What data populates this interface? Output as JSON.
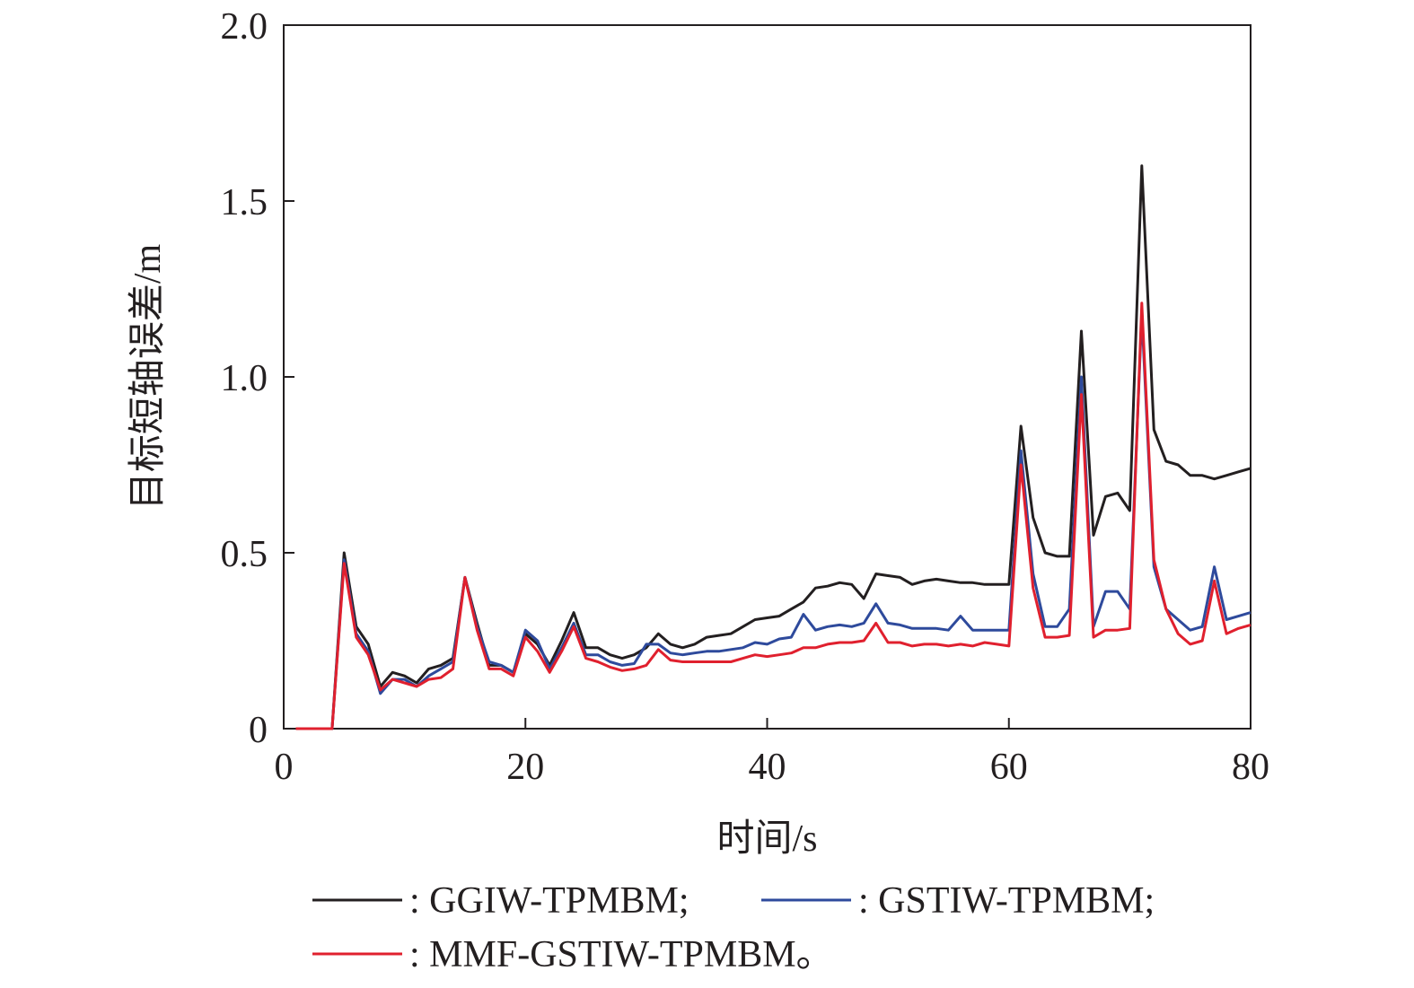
{
  "chart_data": {
    "type": "line",
    "title": "",
    "xlabel": "时间/s",
    "ylabel": "目标短轴误差/m",
    "xlim": [
      0,
      80
    ],
    "ylim": [
      0,
      2.0
    ],
    "x_ticks": [
      0,
      20,
      40,
      60,
      80
    ],
    "x_tick_labels": [
      "0",
      "20",
      "40",
      "60",
      "80"
    ],
    "y_ticks": [
      0,
      0.5,
      1.0,
      1.5,
      2.0
    ],
    "y_tick_labels": [
      "0",
      "0.5",
      "1.0",
      "1.5",
      "2.0"
    ],
    "grid": false,
    "legend_position": "bottom",
    "x": [
      1,
      2,
      3,
      4,
      5,
      6,
      7,
      8,
      9,
      10,
      11,
      12,
      13,
      14,
      15,
      16,
      17,
      18,
      19,
      20,
      21,
      22,
      23,
      24,
      25,
      26,
      27,
      28,
      29,
      30,
      31,
      32,
      33,
      34,
      35,
      36,
      37,
      38,
      39,
      40,
      41,
      42,
      43,
      44,
      45,
      46,
      47,
      48,
      49,
      50,
      51,
      52,
      53,
      54,
      55,
      56,
      57,
      58,
      59,
      60,
      61,
      62,
      63,
      64,
      65,
      66,
      67,
      68,
      69,
      70,
      71,
      72,
      73,
      74,
      75,
      76,
      77,
      78,
      79,
      80
    ],
    "series": [
      {
        "name": ": GGIW-TPMBM;",
        "color": "#231f20",
        "values": [
          0,
          0,
          0,
          0,
          0.5,
          0.29,
          0.24,
          0.12,
          0.16,
          0.15,
          0.13,
          0.17,
          0.18,
          0.2,
          0.43,
          0.3,
          0.18,
          0.18,
          0.16,
          0.27,
          0.24,
          0.18,
          0.25,
          0.33,
          0.23,
          0.23,
          0.21,
          0.2,
          0.21,
          0.23,
          0.27,
          0.24,
          0.23,
          0.24,
          0.26,
          0.265,
          0.27,
          0.29,
          0.31,
          0.315,
          0.32,
          0.34,
          0.36,
          0.4,
          0.405,
          0.415,
          0.41,
          0.37,
          0.44,
          0.435,
          0.43,
          0.41,
          0.42,
          0.425,
          0.42,
          0.415,
          0.415,
          0.41,
          0.41,
          0.41,
          0.86,
          0.6,
          0.5,
          0.49,
          0.49,
          1.13,
          0.55,
          0.66,
          0.67,
          0.62,
          1.6,
          0.85,
          0.76,
          0.75,
          0.72,
          0.72,
          0.71,
          0.72,
          0.73,
          0.74
        ]
      },
      {
        "name": ": GSTIW-TPMBM;",
        "color": "#2e4a9c",
        "values": [
          0,
          0,
          0,
          0,
          0.48,
          0.27,
          0.22,
          0.1,
          0.14,
          0.14,
          0.12,
          0.15,
          0.17,
          0.19,
          0.43,
          0.29,
          0.19,
          0.18,
          0.16,
          0.28,
          0.25,
          0.17,
          0.23,
          0.3,
          0.21,
          0.21,
          0.19,
          0.18,
          0.185,
          0.24,
          0.24,
          0.215,
          0.21,
          0.215,
          0.22,
          0.22,
          0.225,
          0.23,
          0.245,
          0.24,
          0.255,
          0.26,
          0.325,
          0.28,
          0.29,
          0.295,
          0.29,
          0.3,
          0.355,
          0.3,
          0.295,
          0.285,
          0.285,
          0.285,
          0.28,
          0.32,
          0.28,
          0.28,
          0.28,
          0.28,
          0.79,
          0.44,
          0.29,
          0.29,
          0.34,
          1.0,
          0.29,
          0.39,
          0.39,
          0.34,
          1.18,
          0.46,
          0.34,
          0.31,
          0.28,
          0.29,
          0.46,
          0.31,
          0.32,
          0.33
        ]
      },
      {
        "name": ": MMF-GSTIW-TPMBM。",
        "color": "#e0202e",
        "values": [
          0,
          0,
          0,
          0,
          0.47,
          0.26,
          0.21,
          0.11,
          0.14,
          0.13,
          0.12,
          0.14,
          0.145,
          0.17,
          0.43,
          0.28,
          0.17,
          0.17,
          0.15,
          0.26,
          0.22,
          0.16,
          0.22,
          0.29,
          0.2,
          0.19,
          0.175,
          0.165,
          0.17,
          0.18,
          0.225,
          0.195,
          0.19,
          0.19,
          0.19,
          0.19,
          0.19,
          0.2,
          0.21,
          0.205,
          0.21,
          0.215,
          0.23,
          0.23,
          0.24,
          0.245,
          0.245,
          0.25,
          0.3,
          0.245,
          0.245,
          0.235,
          0.24,
          0.24,
          0.235,
          0.24,
          0.235,
          0.245,
          0.24,
          0.235,
          0.75,
          0.4,
          0.26,
          0.26,
          0.265,
          0.95,
          0.26,
          0.28,
          0.28,
          0.285,
          1.21,
          0.48,
          0.34,
          0.27,
          0.24,
          0.25,
          0.42,
          0.27,
          0.285,
          0.295
        ]
      }
    ]
  }
}
